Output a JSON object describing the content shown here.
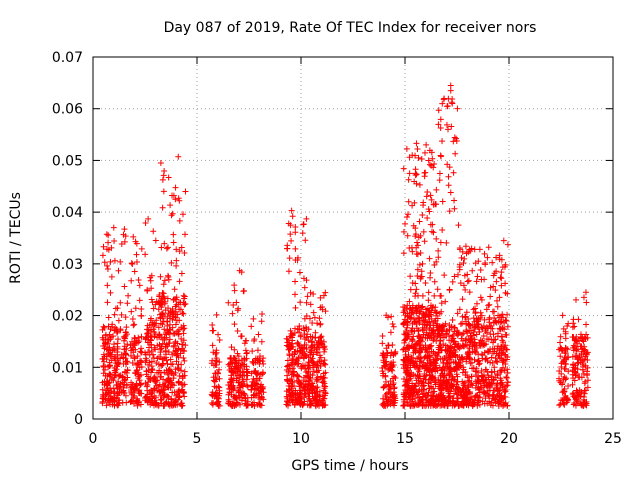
{
  "chart_data": {
    "type": "scatter",
    "title": "Day 087 of 2019, Rate Of TEC Index for receiver nors",
    "xlabel": "GPS time / hours",
    "ylabel": "ROTI / TECUs",
    "xlim": [
      0,
      25
    ],
    "ylim": [
      0,
      0.07
    ],
    "x_ticks": [
      0,
      5,
      10,
      15,
      20,
      25
    ],
    "y_ticks": [
      0,
      0.01,
      0.02,
      0.03,
      0.04,
      0.05,
      0.06,
      0.07
    ],
    "x_tick_labels": [
      "0",
      "5",
      "10",
      "15",
      "20",
      "25"
    ],
    "y_tick_labels": [
      "0",
      "0.01",
      "0.02",
      "0.03",
      "0.04",
      "0.05",
      "0.06",
      "0.07"
    ],
    "grid": true,
    "marker": "+",
    "series": [
      {
        "name": "ROTI",
        "color": "#ff0000",
        "clusters": [
          {
            "x_start": 0.45,
            "x_end": 1.7,
            "base_max": 0.018,
            "peak": 0.037,
            "count": 260
          },
          {
            "x_start": 1.8,
            "x_end": 2.35,
            "base_max": 0.016,
            "peak": 0.036,
            "count": 110
          },
          {
            "x_start": 2.5,
            "x_end": 3.1,
            "base_max": 0.02,
            "peak": 0.0385,
            "count": 130
          },
          {
            "x_start": 3.15,
            "x_end": 4.45,
            "base_max": 0.024,
            "peak": 0.0505,
            "count": 340
          },
          {
            "x_start": 5.7,
            "x_end": 6.1,
            "base_max": 0.012,
            "peak": 0.021,
            "count": 60
          },
          {
            "x_start": 6.5,
            "x_end": 7.45,
            "base_max": 0.012,
            "peak": 0.0285,
            "count": 170
          },
          {
            "x_start": 7.6,
            "x_end": 8.2,
            "base_max": 0.012,
            "peak": 0.021,
            "count": 90
          },
          {
            "x_start": 9.3,
            "x_end": 10.4,
            "base_max": 0.018,
            "peak": 0.04,
            "count": 270
          },
          {
            "x_start": 10.4,
            "x_end": 11.2,
            "base_max": 0.016,
            "peak": 0.025,
            "count": 170
          },
          {
            "x_start": 13.9,
            "x_end": 14.55,
            "base_max": 0.013,
            "peak": 0.021,
            "count": 110
          },
          {
            "x_start": 14.9,
            "x_end": 16.6,
            "base_max": 0.022,
            "peak": 0.053,
            "count": 620
          },
          {
            "x_start": 16.6,
            "x_end": 17.6,
            "base_max": 0.018,
            "peak": 0.064,
            "count": 330
          },
          {
            "x_start": 17.6,
            "x_end": 19.95,
            "base_max": 0.02,
            "peak": 0.0345,
            "count": 560
          },
          {
            "x_start": 22.4,
            "x_end": 22.85,
            "base_max": 0.014,
            "peak": 0.0215,
            "count": 70
          },
          {
            "x_start": 23.05,
            "x_end": 23.8,
            "base_max": 0.016,
            "peak": 0.0245,
            "count": 140
          }
        ],
        "outliers": [
          {
            "x": 4.1,
            "y": 0.0507
          },
          {
            "x": 4.15,
            "y": 0.0422
          },
          {
            "x": 4.0,
            "y": 0.0328
          },
          {
            "x": 9.55,
            "y": 0.0403
          },
          {
            "x": 9.5,
            "y": 0.0375
          },
          {
            "x": 9.6,
            "y": 0.0392
          },
          {
            "x": 7.05,
            "y": 0.0287
          },
          {
            "x": 7.15,
            "y": 0.0284
          },
          {
            "x": 15.55,
            "y": 0.0533
          },
          {
            "x": 15.6,
            "y": 0.0522
          },
          {
            "x": 15.65,
            "y": 0.0505
          },
          {
            "x": 15.5,
            "y": 0.0475
          },
          {
            "x": 15.55,
            "y": 0.0455
          },
          {
            "x": 15.45,
            "y": 0.0418
          },
          {
            "x": 15.7,
            "y": 0.0382
          },
          {
            "x": 15.75,
            "y": 0.0354
          },
          {
            "x": 17.2,
            "y": 0.0645
          },
          {
            "x": 17.2,
            "y": 0.0635
          },
          {
            "x": 17.15,
            "y": 0.0487
          },
          {
            "x": 17.1,
            "y": 0.0452
          },
          {
            "x": 17.2,
            "y": 0.0438
          },
          {
            "x": 17.15,
            "y": 0.0402
          },
          {
            "x": 19.75,
            "y": 0.0345
          },
          {
            "x": 18.6,
            "y": 0.0328
          },
          {
            "x": 1.0,
            "y": 0.037
          },
          {
            "x": 2.65,
            "y": 0.0387
          },
          {
            "x": 23.7,
            "y": 0.0245
          }
        ]
      }
    ]
  }
}
